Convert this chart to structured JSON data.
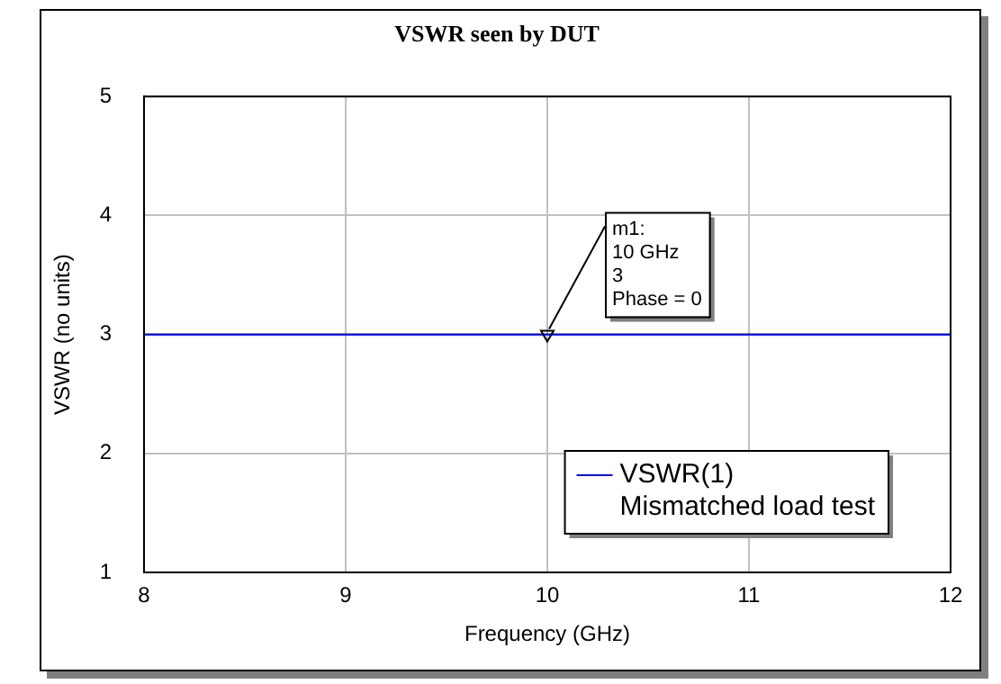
{
  "chart_data": {
    "type": "line",
    "title": "VSWR seen by DUT",
    "xlabel": "Frequency (GHz)",
    "ylabel": "VSWR (no units)",
    "legend_title": "Mismatched load test",
    "x": [
      8,
      12
    ],
    "series": [
      {
        "name": "VSWR(1)",
        "color": "#0000ff",
        "values": [
          3,
          3
        ]
      }
    ],
    "xlim": [
      8,
      12
    ],
    "xticks": [
      8,
      9,
      10,
      11,
      12
    ],
    "ylim": [
      1,
      5
    ],
    "yticks": [
      1,
      2,
      3,
      4,
      5
    ],
    "grid": true,
    "legend": "bottom right",
    "marker": "none",
    "line_style": "solid",
    "annotations": [
      {
        "text": "m1:\n10 GHz\n3\nPhase = 0",
        "x": 10,
        "y": 3
      }
    ]
  }
}
